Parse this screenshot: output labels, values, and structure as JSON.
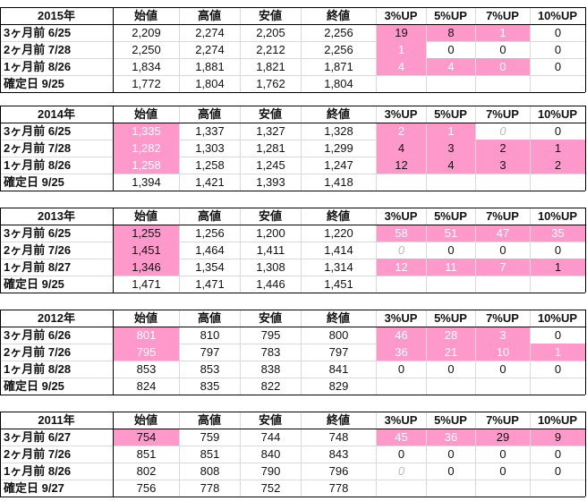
{
  "headers": [
    "始値",
    "高値",
    "安値",
    "終値",
    "3%UP",
    "5%UP",
    "7%UP",
    "10%UP"
  ],
  "colors": {
    "pink": "#ff99cc",
    "light_pink": "#ffb3d9",
    "border": "#000000"
  },
  "blocks": [
    {
      "year": "2015年",
      "rows": [
        {
          "label": "3ヶ月前  6/25",
          "vals": [
            "2,209",
            "2,274",
            "2,205",
            "2,256",
            "19",
            "8",
            "1",
            "0"
          ],
          "hl": [
            0,
            0,
            0,
            0,
            1,
            1,
            1,
            0
          ]
        },
        {
          "label": "2ヶ月前  7/28",
          "vals": [
            "2,250",
            "2,274",
            "2,212",
            "2,256",
            "1",
            "0",
            "0",
            "0"
          ],
          "hl": [
            0,
            0,
            0,
            0,
            1,
            0,
            0,
            0
          ]
        },
        {
          "label": "1ヶ月前  8/26",
          "vals": [
            "1,834",
            "1,881",
            "1,821",
            "1,871",
            "4",
            "4",
            "0",
            "0"
          ],
          "hl": [
            0,
            0,
            0,
            0,
            1,
            1,
            1,
            0
          ]
        },
        {
          "label": "確定日   9/25",
          "vals": [
            "1,772",
            "1,804",
            "1,762",
            "1,804",
            "",
            "",
            "",
            ""
          ],
          "hl": [
            0,
            0,
            0,
            0,
            0,
            0,
            0,
            0
          ]
        }
      ]
    },
    {
      "year": "2014年",
      "rows": [
        {
          "label": "3ヶ月前  6/25",
          "vals": [
            "1,335",
            "1,337",
            "1,327",
            "1,328",
            "2",
            "1",
            "0",
            "0"
          ],
          "hl": [
            1,
            0,
            0,
            0,
            1,
            1,
            0,
            0
          ]
        },
        {
          "label": "2ヶ月前  7/28",
          "vals": [
            "1,282",
            "1,303",
            "1,281",
            "1,299",
            "4",
            "3",
            "2",
            "1"
          ],
          "hl": [
            1,
            0,
            0,
            0,
            1,
            1,
            1,
            1
          ]
        },
        {
          "label": "1ヶ月前  8/26",
          "vals": [
            "1,258",
            "1,258",
            "1,245",
            "1,247",
            "12",
            "4",
            "3",
            "2"
          ],
          "hl": [
            1,
            0,
            0,
            0,
            1,
            1,
            1,
            1
          ]
        },
        {
          "label": "確定日   9/25",
          "vals": [
            "1,394",
            "1,421",
            "1,393",
            "1,418",
            "",
            "",
            "",
            ""
          ],
          "hl": [
            0,
            0,
            0,
            0,
            0,
            0,
            0,
            0
          ]
        }
      ]
    },
    {
      "year": "2013年",
      "rows": [
        {
          "label": "3ヶ月前  6/25",
          "vals": [
            "1,255",
            "1,256",
            "1,200",
            "1,220",
            "58",
            "51",
            "47",
            "35"
          ],
          "hl": [
            1,
            0,
            0,
            0,
            1,
            1,
            1,
            1
          ]
        },
        {
          "label": "2ヶ月前  7/26",
          "vals": [
            "1,451",
            "1,464",
            "1,411",
            "1,414",
            "0",
            "0",
            "0",
            "0"
          ],
          "hl": [
            1,
            0,
            0,
            0,
            0,
            0,
            0,
            0
          ]
        },
        {
          "label": "1ヶ月前  8/27",
          "vals": [
            "1,346",
            "1,354",
            "1,308",
            "1,314",
            "12",
            "11",
            "7",
            "1"
          ],
          "hl": [
            1,
            0,
            0,
            0,
            1,
            1,
            1,
            1
          ]
        },
        {
          "label": "確定日   9/25",
          "vals": [
            "1,471",
            "1,471",
            "1,446",
            "1,451",
            "",
            "",
            "",
            ""
          ],
          "hl": [
            0,
            0,
            0,
            0,
            0,
            0,
            0,
            0
          ]
        }
      ]
    },
    {
      "year": "2012年",
      "rows": [
        {
          "label": "3ヶ月前  6/26",
          "vals": [
            "801",
            "810",
            "795",
            "800",
            "46",
            "28",
            "3",
            "0"
          ],
          "hl": [
            1,
            0,
            0,
            0,
            1,
            1,
            1,
            0
          ]
        },
        {
          "label": "2ヶ月前  7/26",
          "vals": [
            "795",
            "797",
            "783",
            "797",
            "36",
            "21",
            "10",
            "1"
          ],
          "hl": [
            1,
            0,
            0,
            0,
            1,
            1,
            1,
            1
          ]
        },
        {
          "label": "1ヶ月前  8/28",
          "vals": [
            "853",
            "853",
            "838",
            "841",
            "0",
            "0",
            "0",
            "0"
          ],
          "hl": [
            0,
            0,
            0,
            0,
            0,
            0,
            0,
            0
          ]
        },
        {
          "label": "確定日   9/25",
          "vals": [
            "824",
            "835",
            "822",
            "829",
            "",
            "",
            "",
            ""
          ],
          "hl": [
            0,
            0,
            0,
            0,
            0,
            0,
            0,
            0
          ]
        }
      ]
    },
    {
      "year": "2011年",
      "rows": [
        {
          "label": "3ヶ月前  6/27",
          "vals": [
            "754",
            "759",
            "744",
            "748",
            "45",
            "36",
            "29",
            "9"
          ],
          "hl": [
            1,
            0,
            0,
            0,
            1,
            1,
            1,
            1
          ]
        },
        {
          "label": "2ヶ月前  7/26",
          "vals": [
            "851",
            "851",
            "840",
            "843",
            "0",
            "0",
            "0",
            "0"
          ],
          "hl": [
            0,
            0,
            0,
            0,
            0,
            0,
            0,
            0
          ]
        },
        {
          "label": "1ヶ月前  8/26",
          "vals": [
            "802",
            "808",
            "790",
            "796",
            "0",
            "0",
            "0",
            "0"
          ],
          "hl": [
            0,
            0,
            0,
            0,
            0,
            0,
            0,
            0
          ]
        },
        {
          "label": "確定日   9/27",
          "vals": [
            "756",
            "778",
            "752",
            "778",
            "",
            "",
            "",
            ""
          ],
          "hl": [
            0,
            0,
            0,
            0,
            0,
            0,
            0,
            0
          ]
        }
      ]
    }
  ]
}
